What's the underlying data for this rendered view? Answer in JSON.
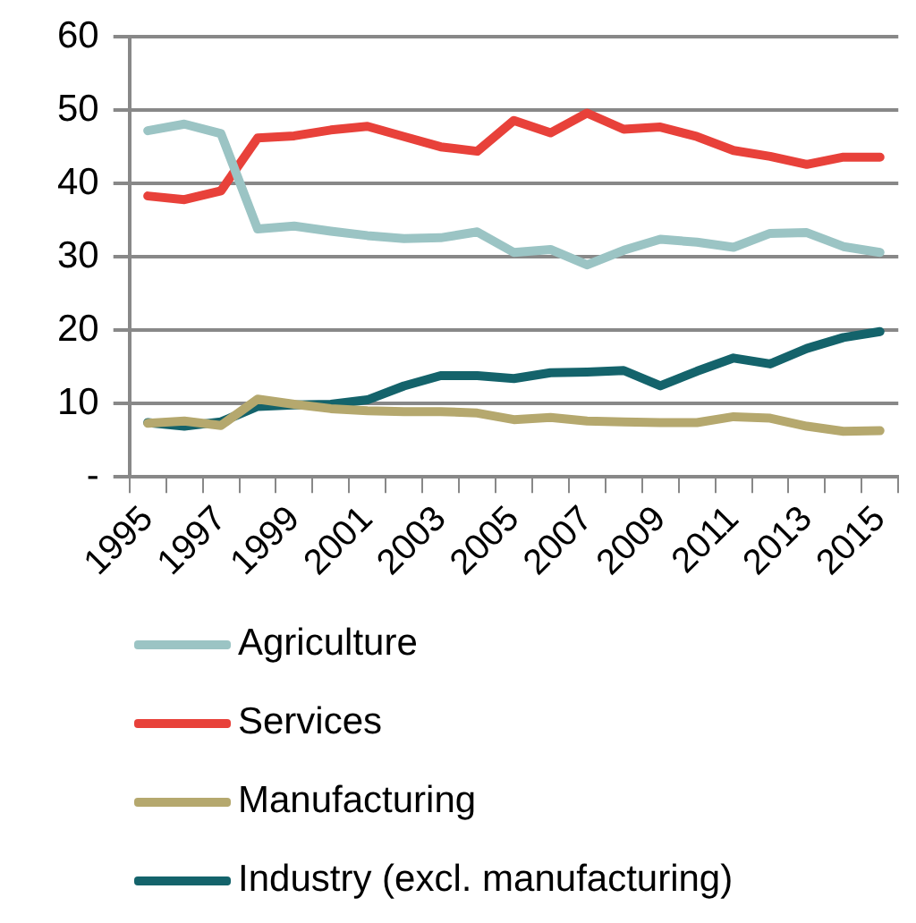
{
  "chart_data": {
    "type": "line",
    "categories": [
      "1995",
      null,
      "1997",
      null,
      "1999",
      null,
      "2001",
      null,
      "2003",
      null,
      "2005",
      null,
      "2007",
      null,
      "2009",
      null,
      "2011",
      null,
      "2013",
      null,
      "2015"
    ],
    "series": [
      {
        "name": "Agriculture",
        "color": "#9bc4c4",
        "values": [
          47.2,
          48.1,
          46.8,
          33.8,
          34.2,
          33.5,
          32.9,
          32.5,
          32.6,
          33.4,
          30.6,
          31.0,
          28.9,
          30.9,
          32.4,
          32.0,
          31.3,
          33.2,
          33.3,
          31.4,
          30.6
        ]
      },
      {
        "name": "Services",
        "color": "#e8413a",
        "values": [
          38.3,
          37.8,
          39.0,
          46.2,
          46.5,
          47.3,
          47.8,
          46.4,
          45.0,
          44.4,
          48.6,
          46.9,
          49.6,
          47.4,
          47.7,
          46.4,
          44.5,
          43.7,
          42.6,
          43.6,
          43.6
        ]
      },
      {
        "name": "Manufacturing",
        "color": "#b5a86e",
        "values": [
          7.3,
          7.6,
          7.0,
          10.6,
          9.9,
          9.3,
          9.0,
          8.9,
          8.9,
          8.7,
          7.8,
          8.1,
          7.6,
          7.5,
          7.4,
          7.4,
          8.2,
          8.0,
          6.9,
          6.2,
          6.3
        ]
      },
      {
        "name": "Industry (excl. manufacturing)",
        "color": "#14636b",
        "values": [
          7.4,
          6.9,
          7.5,
          9.6,
          9.8,
          9.9,
          10.5,
          12.4,
          13.8,
          13.8,
          13.4,
          14.2,
          14.3,
          14.5,
          12.4,
          14.4,
          16.2,
          15.4,
          17.5,
          19.0,
          19.8
        ]
      }
    ],
    "ylim": [
      0,
      60
    ],
    "yticks": [
      {
        "value": 0,
        "label": "-"
      },
      10,
      20,
      30,
      40,
      50,
      60
    ],
    "grid": "y",
    "legend": "bottom",
    "marker": "none",
    "line_style": "solid"
  }
}
